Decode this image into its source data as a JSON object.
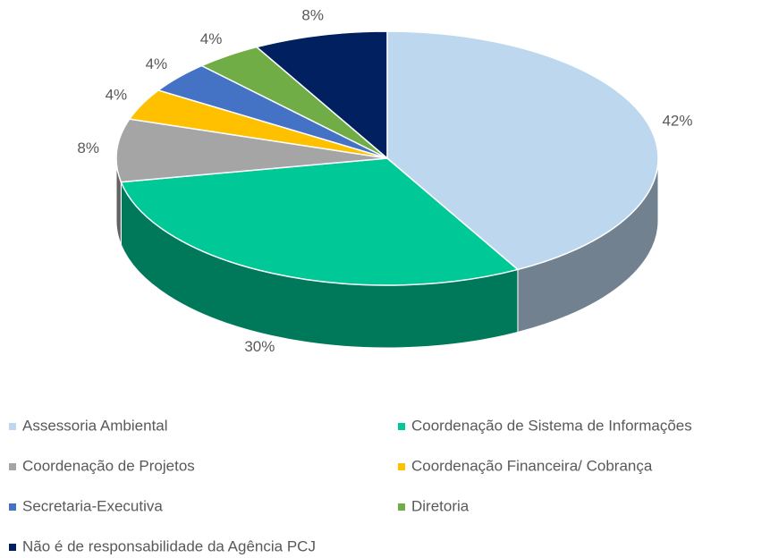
{
  "chart_data": {
    "type": "pie3d",
    "categories": [
      "Assessoria Ambiental",
      "Coordenação de Sistema de Informações",
      "Coordenação de Projetos",
      "Coordenação Financeira/ Cobrança",
      "Secretaria-Executiva",
      "Diretoria",
      "Não é de responsabilidade da Agência PCJ"
    ],
    "values": [
      42,
      30,
      8,
      4,
      4,
      4,
      8
    ],
    "value_labels": [
      "42%",
      "30%",
      "8%",
      "4%",
      "4%",
      "4%",
      "8%"
    ],
    "colors": [
      "#bdd7ee",
      "#00c896",
      "#a5a5a5",
      "#ffc000",
      "#4472c4",
      "#70ad47",
      "#002060"
    ],
    "legend": "bottom"
  }
}
